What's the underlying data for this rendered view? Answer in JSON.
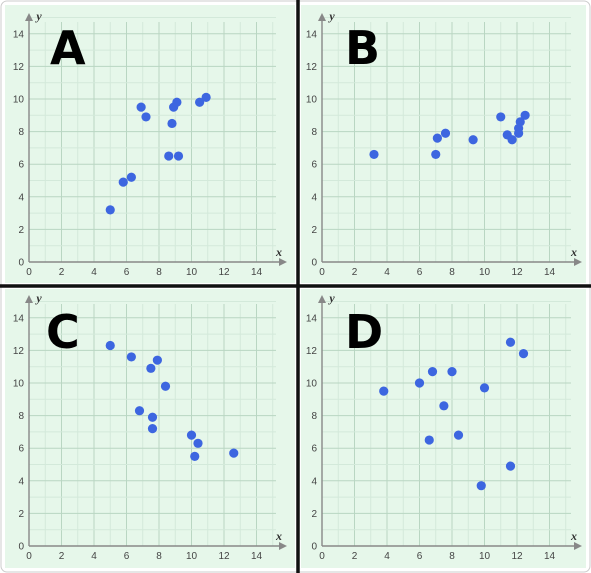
{
  "chart_data": [
    {
      "type": "scatter",
      "panel_label": "A",
      "xlabel": "x",
      "ylabel": "y",
      "xlim": [
        0,
        16
      ],
      "ylim": [
        0,
        15
      ],
      "x_ticks": [
        0,
        2,
        4,
        6,
        8,
        10,
        12,
        14
      ],
      "y_ticks": [
        0,
        2,
        4,
        6,
        8,
        10,
        12,
        14
      ],
      "grid": true,
      "point_color": "#3d66e0",
      "background_color": "#e6f7ea",
      "points": [
        {
          "x": 5.0,
          "y": 3.2
        },
        {
          "x": 5.8,
          "y": 4.9
        },
        {
          "x": 6.3,
          "y": 5.2
        },
        {
          "x": 6.9,
          "y": 9.5
        },
        {
          "x": 7.2,
          "y": 8.9
        },
        {
          "x": 8.6,
          "y": 6.5
        },
        {
          "x": 8.8,
          "y": 8.5
        },
        {
          "x": 8.9,
          "y": 9.5
        },
        {
          "x": 9.1,
          "y": 9.8
        },
        {
          "x": 9.2,
          "y": 6.5
        },
        {
          "x": 10.5,
          "y": 9.8
        },
        {
          "x": 10.9,
          "y": 10.1
        }
      ]
    },
    {
      "type": "scatter",
      "panel_label": "B",
      "xlabel": "x",
      "ylabel": "y",
      "xlim": [
        0,
        16
      ],
      "ylim": [
        0,
        15
      ],
      "x_ticks": [
        0,
        2,
        4,
        6,
        8,
        10,
        12,
        14
      ],
      "y_ticks": [
        0,
        2,
        4,
        6,
        8,
        10,
        12,
        14
      ],
      "grid": true,
      "point_color": "#3d66e0",
      "background_color": "#e6f7ea",
      "points": [
        {
          "x": 3.2,
          "y": 6.6
        },
        {
          "x": 7.0,
          "y": 6.6
        },
        {
          "x": 7.1,
          "y": 7.6
        },
        {
          "x": 7.6,
          "y": 7.9
        },
        {
          "x": 9.3,
          "y": 7.5
        },
        {
          "x": 11.0,
          "y": 8.9
        },
        {
          "x": 11.4,
          "y": 7.8
        },
        {
          "x": 11.7,
          "y": 7.5
        },
        {
          "x": 12.1,
          "y": 7.9
        },
        {
          "x": 12.1,
          "y": 8.2
        },
        {
          "x": 12.2,
          "y": 8.6
        },
        {
          "x": 12.5,
          "y": 9.0
        }
      ]
    },
    {
      "type": "scatter",
      "panel_label": "C",
      "xlabel": "x",
      "ylabel": "y",
      "xlim": [
        0,
        16
      ],
      "ylim": [
        0,
        15
      ],
      "x_ticks": [
        0,
        2,
        4,
        6,
        8,
        10,
        12,
        14
      ],
      "y_ticks": [
        0,
        2,
        4,
        6,
        8,
        10,
        12,
        14
      ],
      "grid": true,
      "point_color": "#3d66e0",
      "background_color": "#e6f7ea",
      "points": [
        {
          "x": 5.0,
          "y": 12.3
        },
        {
          "x": 6.3,
          "y": 11.6
        },
        {
          "x": 6.8,
          "y": 8.3
        },
        {
          "x": 7.5,
          "y": 10.9
        },
        {
          "x": 7.6,
          "y": 7.9
        },
        {
          "x": 7.6,
          "y": 7.2
        },
        {
          "x": 7.9,
          "y": 11.4
        },
        {
          "x": 8.4,
          "y": 9.8
        },
        {
          "x": 10.0,
          "y": 6.8
        },
        {
          "x": 10.2,
          "y": 5.5
        },
        {
          "x": 10.4,
          "y": 6.3
        },
        {
          "x": 12.6,
          "y": 5.7
        }
      ]
    },
    {
      "type": "scatter",
      "panel_label": "D",
      "xlabel": "x",
      "ylabel": "y",
      "xlim": [
        0,
        16
      ],
      "ylim": [
        0,
        15
      ],
      "x_ticks": [
        0,
        2,
        4,
        6,
        8,
        10,
        12,
        14
      ],
      "y_ticks": [
        0,
        2,
        4,
        6,
        8,
        10,
        12,
        14
      ],
      "grid": true,
      "point_color": "#3d66e0",
      "background_color": "#e6f7ea",
      "points": [
        {
          "x": 3.8,
          "y": 9.5
        },
        {
          "x": 6.0,
          "y": 10.0
        },
        {
          "x": 6.6,
          "y": 6.5
        },
        {
          "x": 6.8,
          "y": 10.7
        },
        {
          "x": 7.5,
          "y": 8.6
        },
        {
          "x": 8.0,
          "y": 10.7
        },
        {
          "x": 8.4,
          "y": 6.8
        },
        {
          "x": 9.8,
          "y": 3.7
        },
        {
          "x": 10.0,
          "y": 9.7
        },
        {
          "x": 11.6,
          "y": 12.5
        },
        {
          "x": 11.6,
          "y": 4.9
        },
        {
          "x": 12.4,
          "y": 11.8
        }
      ]
    }
  ]
}
